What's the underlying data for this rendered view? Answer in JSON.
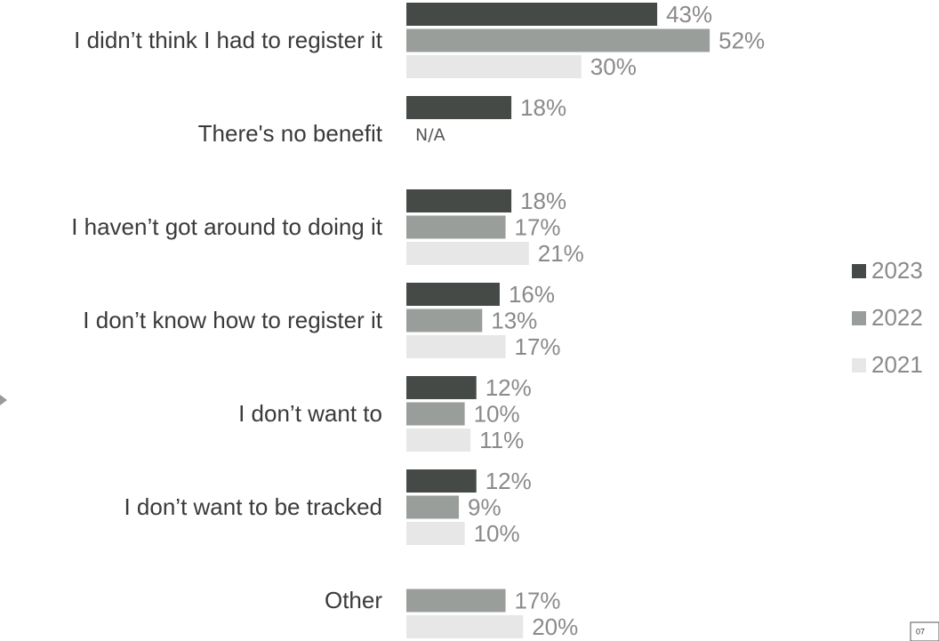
{
  "chart_data": {
    "type": "bar",
    "orientation": "horizontal",
    "categories": [
      "I didn’t think I had to register it",
      "There's no benefit",
      "I haven’t got around to doing it",
      "I don’t know how to register it",
      "I don’t want to",
      "I don’t want to be tracked",
      "Other"
    ],
    "series": [
      {
        "name": "2023",
        "color": "#454a47",
        "values": [
          43,
          18,
          18,
          16,
          12,
          12,
          null
        ],
        "value_labels": [
          "43%",
          "18%",
          "18%",
          "16%",
          "12%",
          "12%",
          null
        ]
      },
      {
        "name": "2022",
        "color": "#9a9e9b",
        "values": [
          52,
          null,
          17,
          13,
          10,
          9,
          17
        ],
        "value_labels": [
          "52%",
          "N/A",
          "17%",
          "13%",
          "10%",
          "9%",
          "17%"
        ]
      },
      {
        "name": "2021",
        "color": "#e6e7e6",
        "values": [
          30,
          null,
          21,
          17,
          11,
          10,
          20
        ],
        "value_labels": [
          "30%",
          null,
          "21%",
          "17%",
          "11%",
          "10%",
          "20%"
        ]
      }
    ],
    "legend": "right",
    "page_number": "07"
  }
}
